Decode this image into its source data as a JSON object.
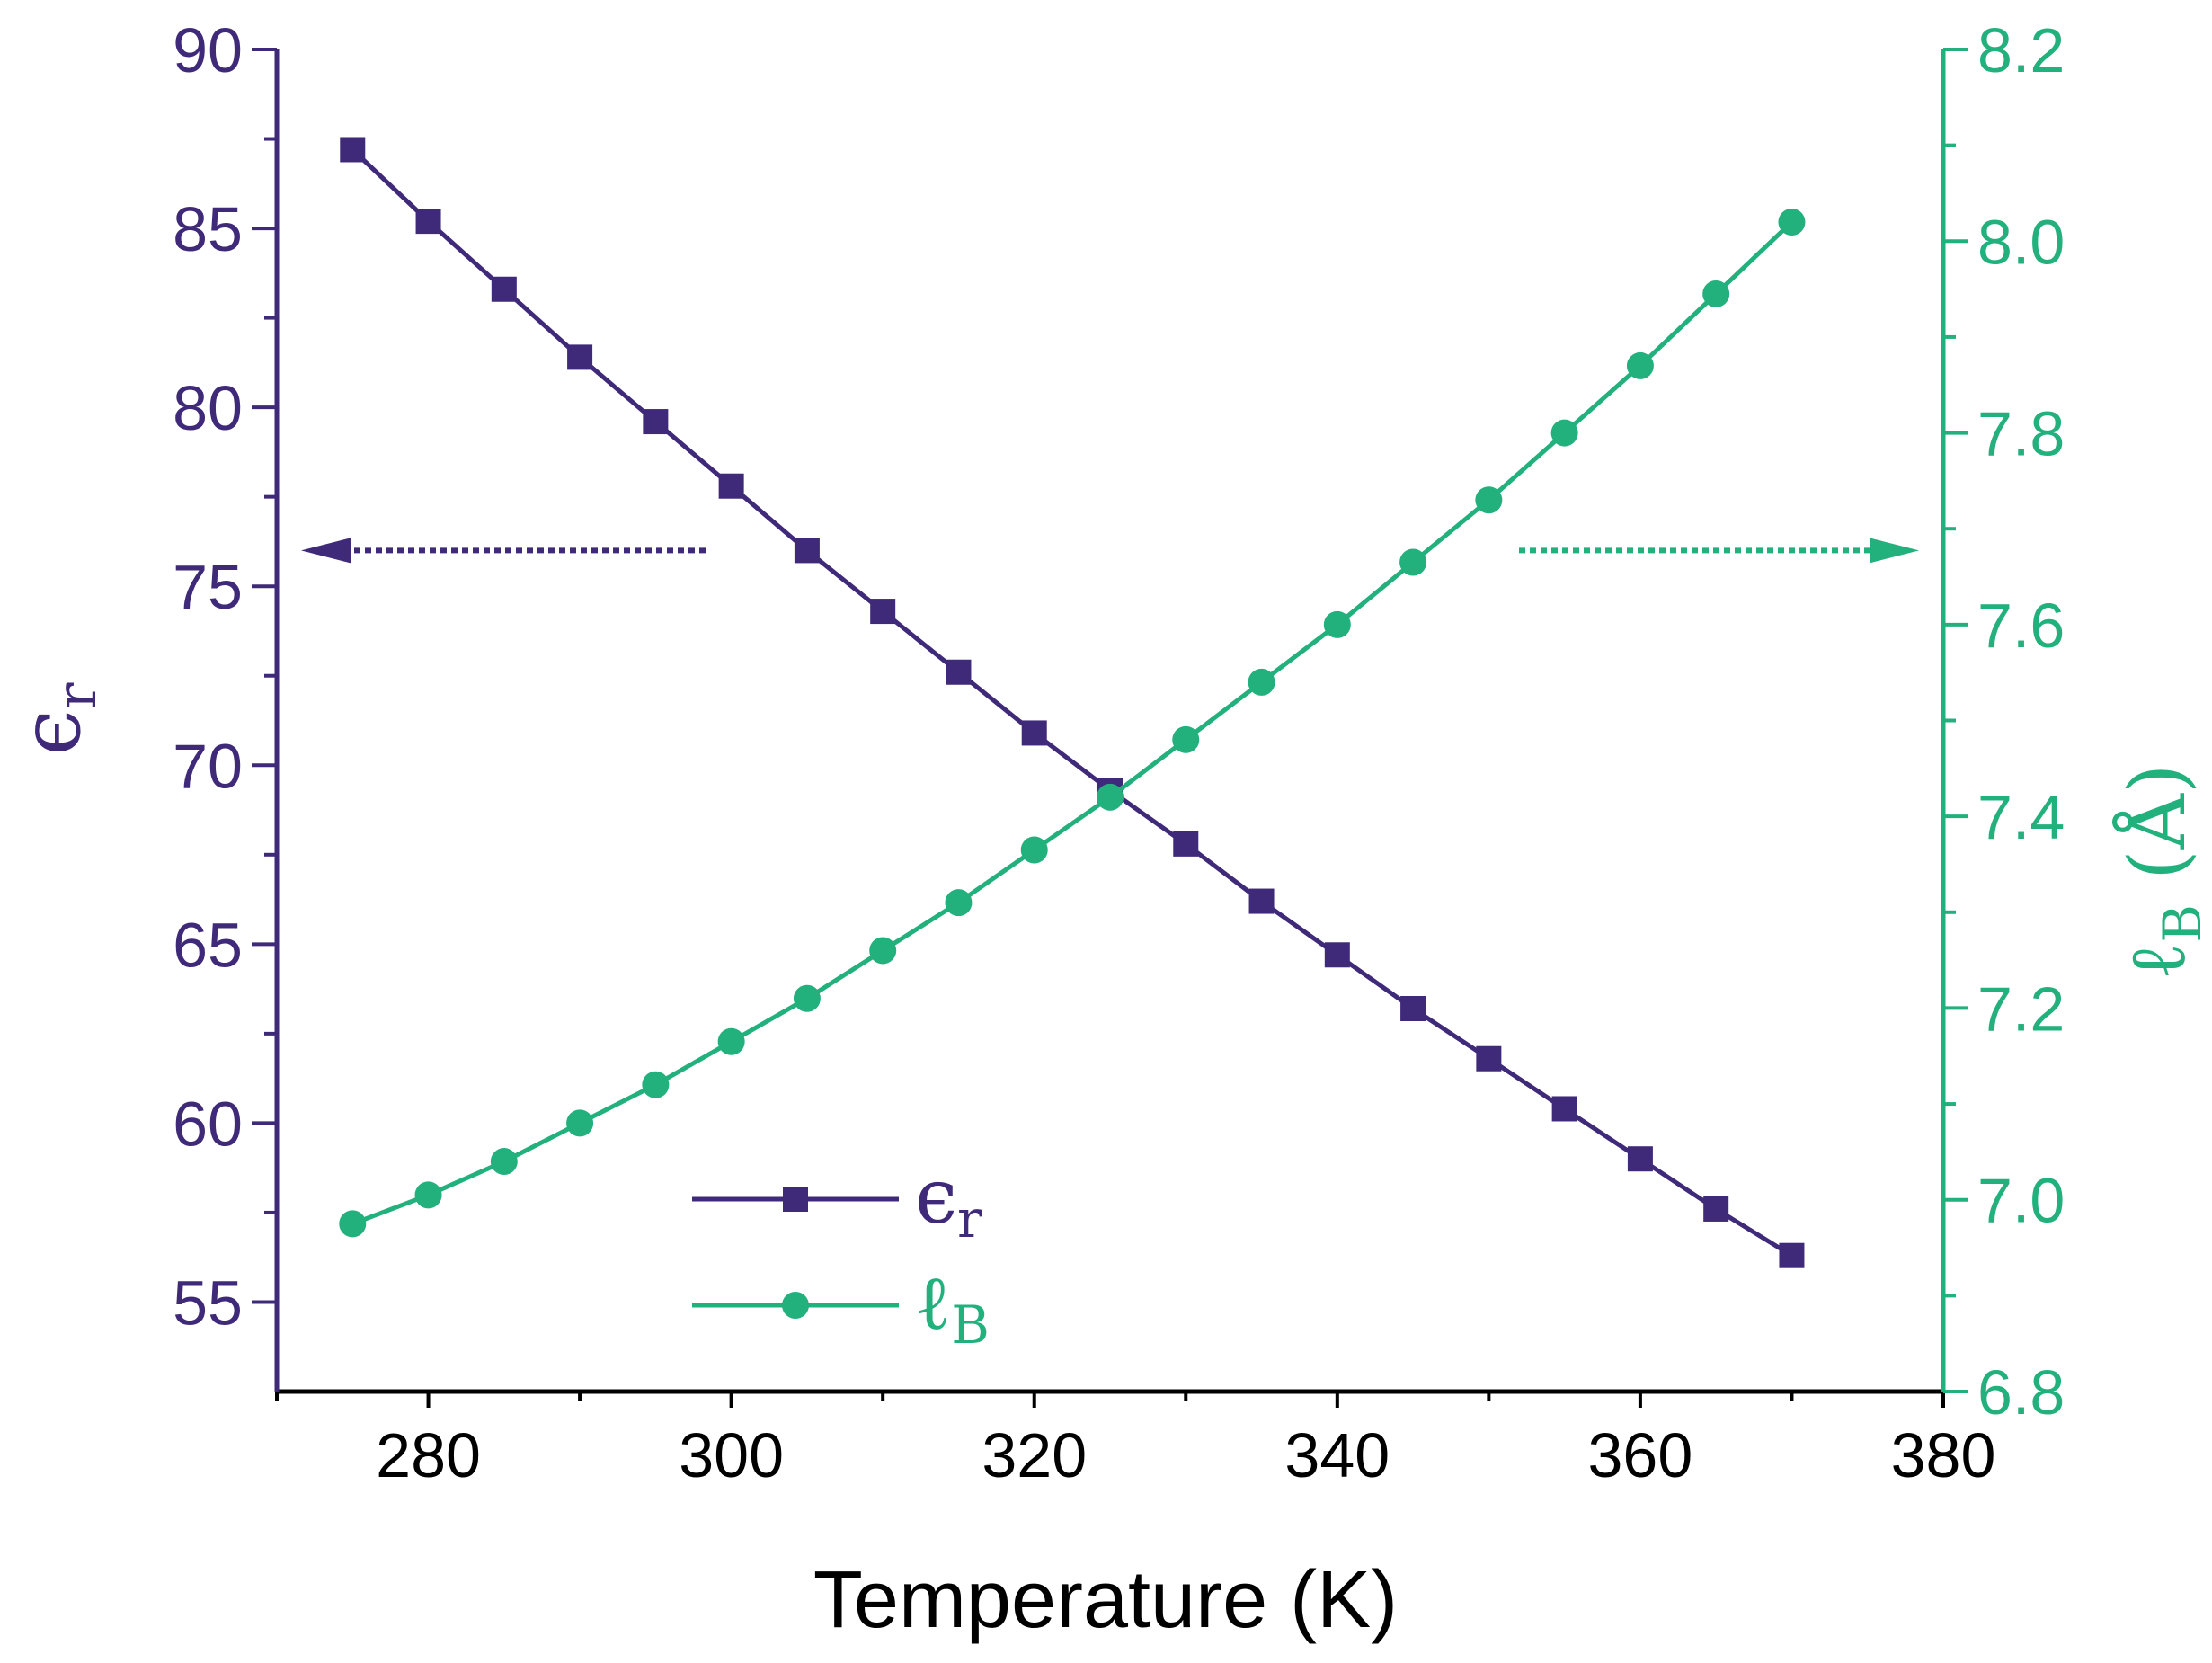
{
  "chart_data": {
    "type": "line",
    "title": "",
    "xlabel": "Temperature (K)",
    "xlim": [
      270,
      380
    ],
    "x_ticks": [
      280,
      300,
      320,
      340,
      360,
      380
    ],
    "y_left": {
      "label_main": "ϵ",
      "label_sub": "r",
      "lim": [
        52.5,
        90
      ],
      "ticks": [
        55,
        60,
        65,
        70,
        75,
        80,
        85,
        90
      ],
      "color": "#3f2a7a"
    },
    "y_right": {
      "label_main": "ℓ",
      "label_sub": "B",
      "label_unit": " (Å)",
      "lim": [
        6.8,
        8.2
      ],
      "ticks": [
        "6.8",
        "7.0",
        "7.2",
        "7.4",
        "7.6",
        "7.8",
        "8.0",
        "8.2"
      ],
      "color": "#22b07d"
    },
    "x": [
      275,
      280,
      285,
      290,
      295,
      300,
      305,
      310,
      315,
      320,
      325,
      330,
      335,
      340,
      345,
      350,
      355,
      360,
      365,
      370
    ],
    "series": [
      {
        "name": "epsilon_r",
        "legend_main": "ϵ",
        "legend_sub": "r",
        "axis": "left",
        "marker": "square",
        "color": "#3f2a7a",
        "values": [
          87.2,
          85.2,
          83.3,
          81.4,
          79.6,
          77.8,
          76.0,
          74.3,
          72.6,
          70.9,
          69.3,
          67.8,
          66.2,
          64.7,
          63.2,
          61.8,
          60.4,
          59.0,
          57.6,
          56.3
        ]
      },
      {
        "name": "l_B",
        "legend_main": "ℓ",
        "legend_sub": "B",
        "axis": "right",
        "marker": "circle",
        "color": "#22b07d",
        "values": [
          6.975,
          7.005,
          7.04,
          7.08,
          7.12,
          7.165,
          7.21,
          7.26,
          7.31,
          7.365,
          7.42,
          7.48,
          7.54,
          7.6,
          7.665,
          7.73,
          7.8,
          7.87,
          7.945,
          8.02
        ]
      }
    ],
    "annotations": [
      {
        "type": "arrow",
        "direction": "left",
        "axis": "left",
        "color": "#3f2a7a"
      },
      {
        "type": "arrow",
        "direction": "right",
        "axis": "right",
        "color": "#22b07d"
      }
    ],
    "legend_position": "bottom-center"
  }
}
